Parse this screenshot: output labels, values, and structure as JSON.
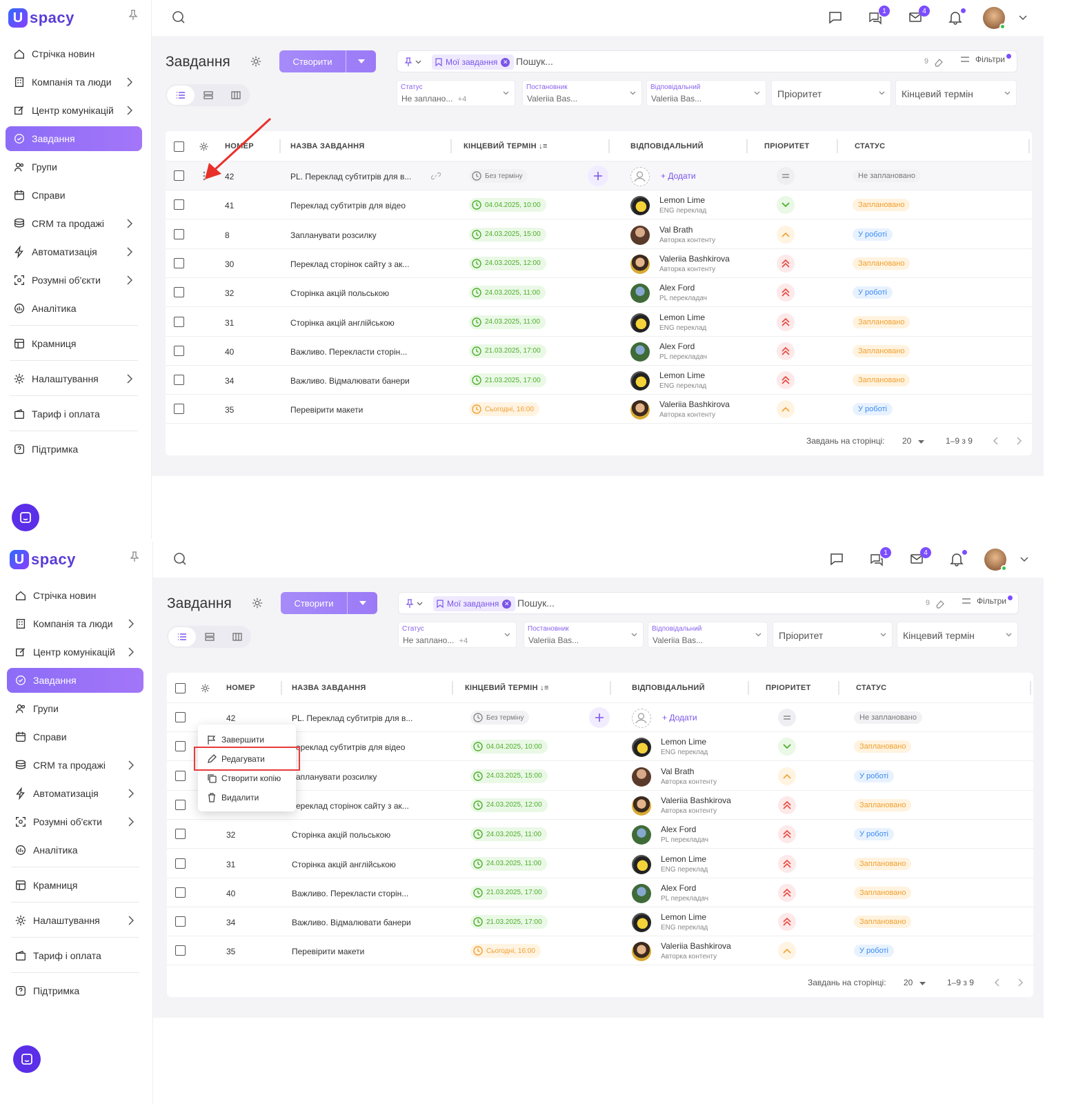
{
  "app": {
    "logo_letter": "U",
    "logo_text": "spacy",
    "accent": "#7c4dff",
    "brand": "#5b2ee8"
  },
  "sidebar": {
    "items": [
      {
        "label": "Стрічка новин",
        "icon": "news-icon",
        "chevron": false,
        "active": false
      },
      {
        "label": "Компанія та люди",
        "icon": "building-icon",
        "chevron": true,
        "active": false
      },
      {
        "label": "Центр комунікацій",
        "icon": "edit-icon",
        "chevron": true,
        "active": false
      },
      {
        "label": "Завдання",
        "icon": "check-circle-icon",
        "chevron": false,
        "active": true
      },
      {
        "label": "Групи",
        "icon": "users-icon",
        "chevron": false,
        "active": false
      },
      {
        "label": "Справи",
        "icon": "calendar-icon",
        "chevron": false,
        "active": false
      },
      {
        "label": "CRM та продажі",
        "icon": "coins-icon",
        "chevron": true,
        "active": false
      },
      {
        "label": "Автоматизація",
        "icon": "lightning-icon",
        "chevron": true,
        "active": false
      },
      {
        "label": "Розумні об'єкти",
        "icon": "smart-object-icon",
        "chevron": true,
        "active": false
      },
      {
        "label": "Аналітика",
        "icon": "analytics-icon",
        "chevron": false,
        "active": false
      }
    ],
    "store": "Крамниця",
    "settings": "Налаштування",
    "tariff": "Тариф і оплата",
    "support": "Підтримка"
  },
  "topbar": {
    "badges": {
      "chat": "1",
      "mail": "4"
    }
  },
  "header": {
    "title": "Завдання",
    "create_label": "Створити",
    "search_chip": "Мої завдання",
    "search_placeholder": "Пошук...",
    "search_count": "9",
    "filters_label": "Фільтри"
  },
  "filters": [
    {
      "label": "Статус",
      "value": "Не заплано...",
      "extra": "+4"
    },
    {
      "label": "Постановник",
      "value": "Valeriia Bas..."
    },
    {
      "label": "Відповідальний",
      "value": "Valeriia Bas..."
    },
    {
      "big": "Пріоритет"
    },
    {
      "big": "Кінцевий термін"
    }
  ],
  "table": {
    "headers": {
      "number": "НОМЕР",
      "name": "НАЗВА ЗАВДАННЯ",
      "deadline": "КІНЦЕВИЙ ТЕРМІН",
      "assignee": "ВІДПОВІДАЛЬНИЙ",
      "priority": "ПРІОРИТЕТ",
      "status": "СТАТУС"
    },
    "add_label": "Додати",
    "rows": [
      {
        "num": "42",
        "name": "PL. Переклад субтитрів для в...",
        "deadline": "Без терміну",
        "dl": "none",
        "person": "",
        "role": "",
        "av": "empty",
        "prio": "eq",
        "status": "Не заплановано",
        "st": "none"
      },
      {
        "num": "41",
        "name": "Переклад субтитрів для відео",
        "deadline": "04.04.2025, 10:00",
        "dl": "green",
        "person": "Lemon Lime",
        "role": "ENG переклад",
        "av": "ll",
        "prio": "low",
        "status": "Заплановано",
        "st": "planned"
      },
      {
        "num": "8",
        "name": "Запланувати розсилку",
        "deadline": "24.03.2025, 15:00",
        "dl": "green",
        "person": "Val Brath",
        "role": "Авторка контенту",
        "av": "vb",
        "prio": "med",
        "status": "У роботі",
        "st": "work"
      },
      {
        "num": "30",
        "name": "Переклад сторінок сайту з ак...",
        "deadline": "24.03.2025, 12:00",
        "dl": "green",
        "person": "Valeriia Bashkirova",
        "role": "Авторка контенту",
        "av": "vba",
        "prio": "high",
        "status": "Заплановано",
        "st": "planned"
      },
      {
        "num": "32",
        "name": "Сторінка акцій польською",
        "deadline": "24.03.2025, 11:00",
        "dl": "green",
        "person": "Alex Ford",
        "role": "PL перекладач",
        "av": "af",
        "prio": "high",
        "status": "У роботі",
        "st": "work"
      },
      {
        "num": "31",
        "name": "Сторінка акцій англійською",
        "deadline": "24.03.2025, 11:00",
        "dl": "green",
        "person": "Lemon Lime",
        "role": "ENG переклад",
        "av": "ll",
        "prio": "high",
        "status": "Заплановано",
        "st": "planned"
      },
      {
        "num": "40",
        "name": "Важливо. Перекласти сторін...",
        "deadline": "21.03.2025, 17:00",
        "dl": "green",
        "person": "Alex Ford",
        "role": "PL перекладач",
        "av": "af",
        "prio": "high",
        "status": "Заплановано",
        "st": "planned"
      },
      {
        "num": "34",
        "name": "Важливо. Відмалювати банери",
        "deadline": "21.03.2025, 17:00",
        "dl": "green",
        "person": "Lemon Lime",
        "role": "ENG переклад",
        "av": "ll",
        "prio": "high",
        "status": "Заплановано",
        "st": "planned"
      },
      {
        "num": "35",
        "name": "Перевірити макети",
        "deadline": "Сьогодні, 16:00",
        "dl": "orange",
        "person": "Valeriia Bashkirova",
        "role": "Авторка контенту",
        "av": "vba",
        "prio": "med",
        "status": "У роботі",
        "st": "work"
      }
    ],
    "rows_truncated_pane2": {
      "41": "ереклад субтитрів для відео",
      "8": "апланувати розсилку",
      "30": "ереклад сторінок сайту з ак..."
    },
    "per_page_label": "Завдань на сторінці:",
    "per_page": "20",
    "range": "1–9 з 9"
  },
  "context_menu": {
    "complete": "Завершити",
    "edit": "Редагувати",
    "copy": "Створити копію",
    "delete": "Видалити"
  }
}
